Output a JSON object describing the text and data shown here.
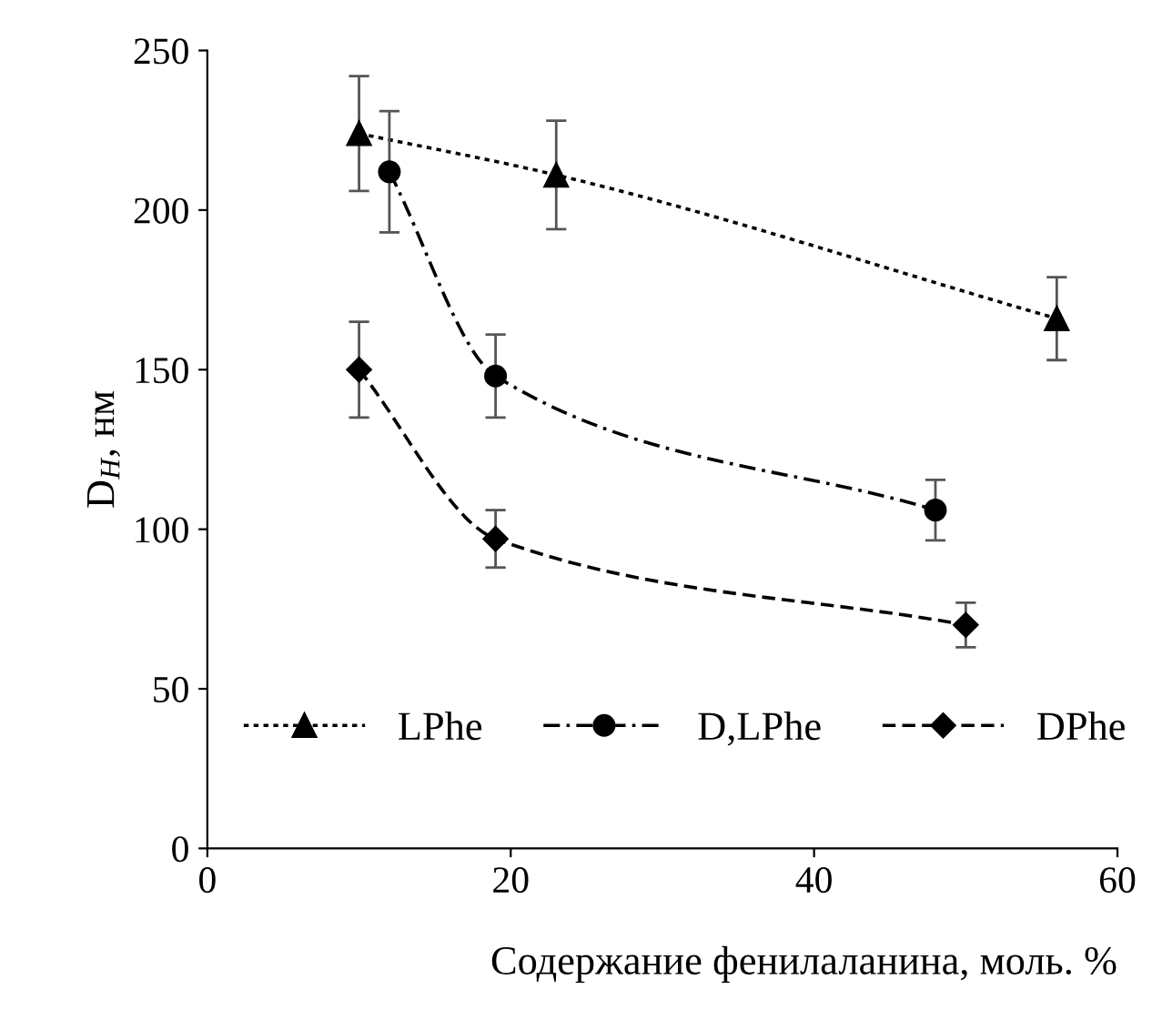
{
  "chart_data": {
    "type": "line",
    "xlabel": "Содержание фенилаланина, моль. %",
    "ylabel": "D$_{H}$, нм",
    "xlim": [
      0,
      60
    ],
    "xticks": [
      0,
      20,
      40,
      60
    ],
    "ylim": [
      0,
      250
    ],
    "yticks": [
      0,
      50,
      100,
      150,
      200,
      250
    ],
    "grid": false,
    "legend": "bottom left",
    "series": [
      {
        "name": "LPhe",
        "color": "#000000",
        "marker": "triangle",
        "line_style": "dotted",
        "x": [
          10,
          23,
          56
        ],
        "values": [
          224,
          211,
          166
        ],
        "errors": [
          18,
          17,
          13
        ]
      },
      {
        "name": "D,LPhe",
        "color": "#000000",
        "marker": "circle",
        "line_style": "dashdot",
        "x": [
          12,
          19,
          48
        ],
        "values": [
          212,
          148,
          106
        ],
        "errors": [
          19,
          13,
          9.5
        ]
      },
      {
        "name": "DPhe",
        "color": "#000000",
        "marker": "diamond",
        "line_style": "dashed",
        "x": [
          10,
          19,
          50
        ],
        "values": [
          150,
          97,
          70
        ],
        "errors": [
          15,
          9,
          7
        ]
      }
    ]
  }
}
